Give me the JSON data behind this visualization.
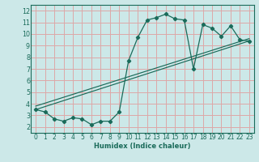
{
  "xlabel": "Humidex (Indice chaleur)",
  "bg_color": "#cce8e8",
  "grid_color": "#dda8a8",
  "line_color": "#1a6b5a",
  "xlim": [
    -0.5,
    23.5
  ],
  "ylim": [
    1.5,
    12.5
  ],
  "xticks": [
    0,
    1,
    2,
    3,
    4,
    5,
    6,
    7,
    8,
    9,
    10,
    11,
    12,
    13,
    14,
    15,
    16,
    17,
    18,
    19,
    20,
    21,
    22,
    23
  ],
  "yticks": [
    2,
    3,
    4,
    5,
    6,
    7,
    8,
    9,
    10,
    11,
    12
  ],
  "scatter_x": [
    0,
    1,
    2,
    3,
    4,
    5,
    6,
    7,
    8,
    9,
    10,
    11,
    12,
    13,
    14,
    15,
    16,
    17,
    18,
    19,
    20,
    21,
    22,
    23
  ],
  "scatter_y": [
    3.5,
    3.3,
    2.7,
    2.5,
    2.8,
    2.7,
    2.2,
    2.5,
    2.5,
    3.3,
    7.7,
    9.7,
    11.2,
    11.4,
    11.7,
    11.3,
    11.2,
    7.0,
    10.8,
    10.5,
    9.8,
    10.7,
    9.5,
    9.4
  ],
  "line1_x": [
    0,
    23
  ],
  "line1_y": [
    3.5,
    9.4
  ],
  "line2_x": [
    0,
    23
  ],
  "line2_y": [
    3.8,
    9.6
  ],
  "tick_fontsize": 5.5,
  "xlabel_fontsize": 6.0
}
